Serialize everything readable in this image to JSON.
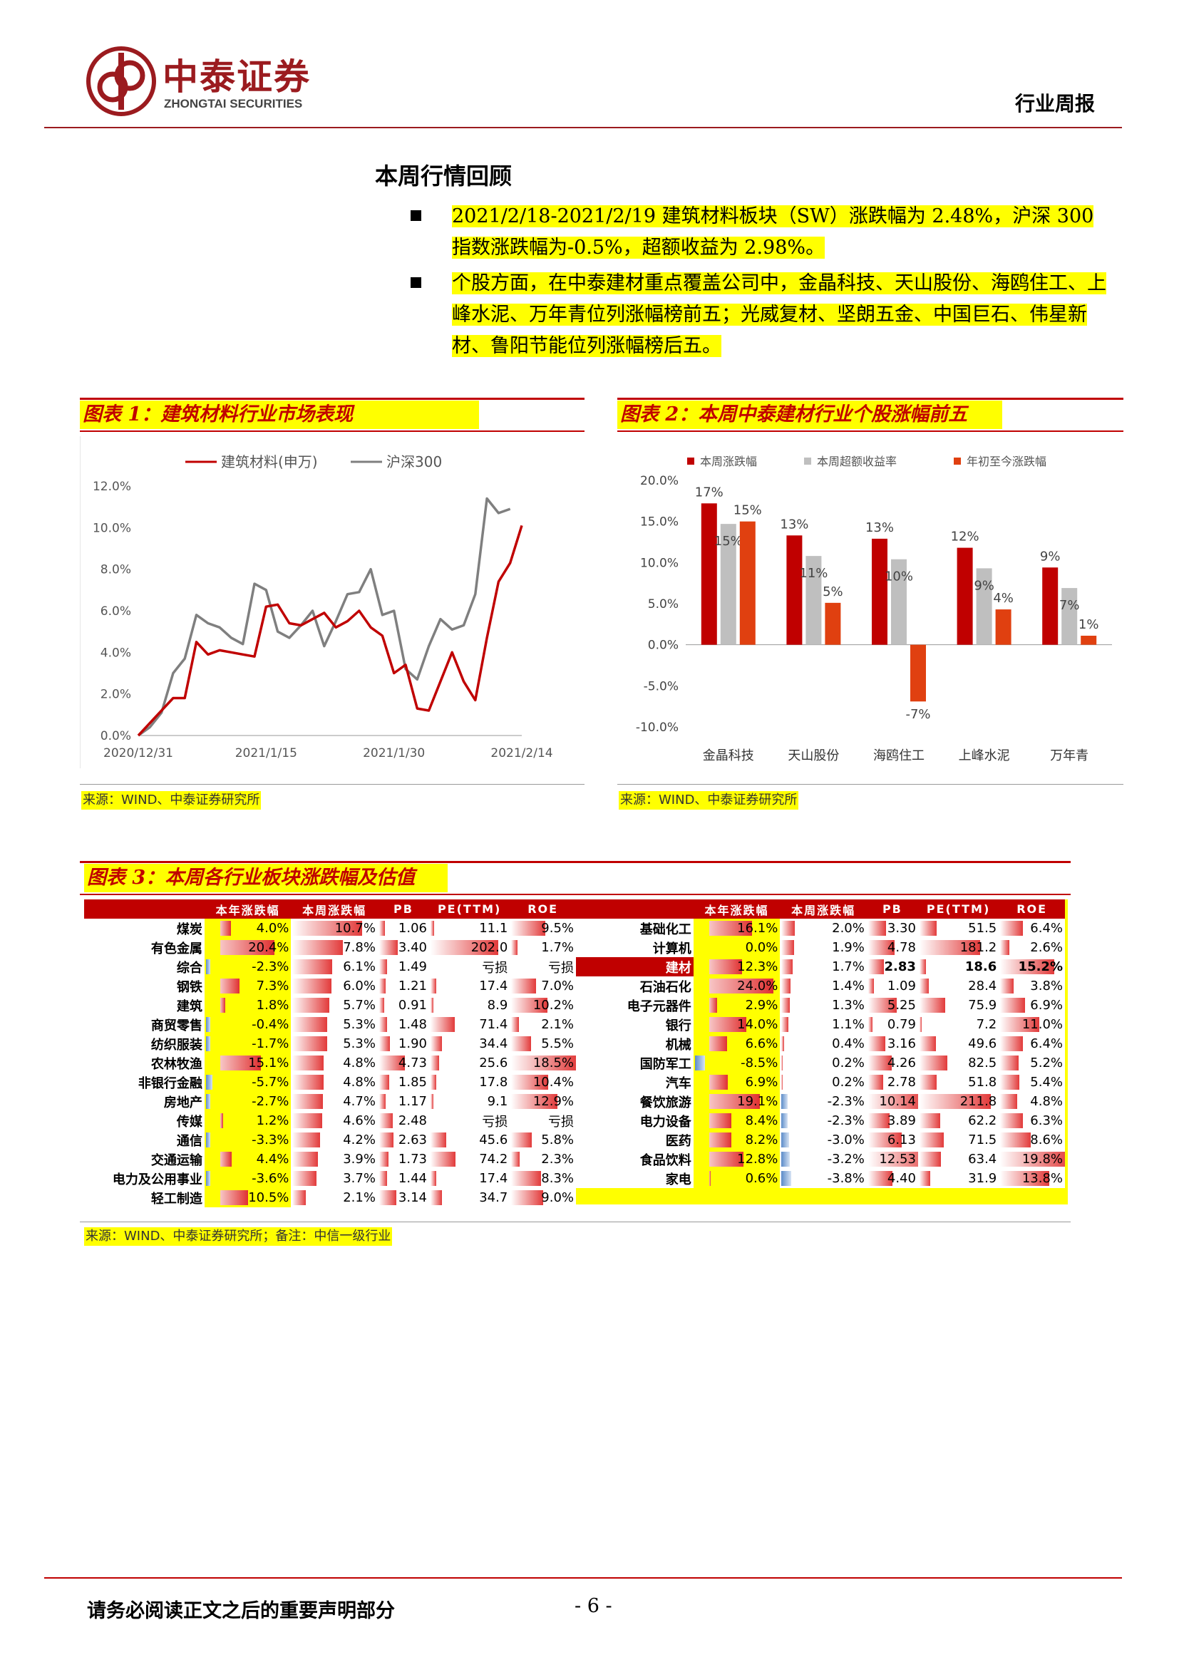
{
  "header": {
    "logo_cn": "中泰证券",
    "logo_en": "ZHONGTAI SECURITIES",
    "report_type": "行业周报"
  },
  "section": {
    "title": "本周行情回顾",
    "bullets": [
      "2021/2/18-2021/2/19 建筑材料板块（SW）涨跌幅为 2.48%，沪深 300 指数涨跌幅为-0.5%，超额收益为 2.98%。",
      "个股方面，在中泰建材重点覆盖公司中，金晶科技、天山股份、海鸥住工、上峰水泥、万年青位列涨幅榜前五；光威复材、坚朗五金、中国巨石、伟星新材、鲁阳节能位列涨幅榜后五。"
    ]
  },
  "figure1": {
    "title": "图表 1：建筑材料行业市场表现",
    "source": "来源：WIND、中泰证券研究所"
  },
  "figure2": {
    "title": "图表 2：本周中泰建材行业个股涨幅前五",
    "source": "来源：WIND、中泰证券研究所"
  },
  "figure3": {
    "title": "图表 3：本周各行业板块涨跌幅及估值",
    "source": "来源：WIND、中泰证券研究所；备注：中信一级行业"
  },
  "chart_data": [
    {
      "type": "line",
      "title": "",
      "x_ticks": [
        "2020/12/31",
        "2021/1/15",
        "2021/1/30",
        "2021/2/14"
      ],
      "ylim": [
        0,
        12
      ],
      "y_ticks": [
        "0.0%",
        "2.0%",
        "4.0%",
        "6.0%",
        "8.0%",
        "10.0%",
        "12.0%"
      ],
      "grid": false,
      "legend": "top",
      "series": [
        {
          "name": "建筑材料(申万)",
          "color": "#c00000",
          "points": [
            [
              0,
              0
            ],
            [
              1,
              0.6
            ],
            [
              2,
              1.2
            ],
            [
              3,
              1.8
            ],
            [
              4,
              1.8
            ],
            [
              5,
              4.5
            ],
            [
              6,
              3.9
            ],
            [
              7,
              4.1
            ],
            [
              8,
              4.0
            ],
            [
              9,
              3.9
            ],
            [
              10,
              3.8
            ],
            [
              11,
              6.2
            ],
            [
              12,
              6.3
            ],
            [
              13,
              5.4
            ],
            [
              14,
              5.3
            ],
            [
              15,
              5.6
            ],
            [
              16,
              5.9
            ],
            [
              17,
              5.2
            ],
            [
              18,
              5.5
            ],
            [
              19,
              6.0
            ],
            [
              20,
              5.2
            ],
            [
              21,
              4.8
            ],
            [
              22,
              3.0
            ],
            [
              23,
              3.4
            ],
            [
              24,
              1.3
            ],
            [
              25,
              1.2
            ],
            [
              26,
              2.6
            ],
            [
              27,
              4.0
            ],
            [
              28,
              2.6
            ],
            [
              29,
              1.7
            ],
            [
              30,
              4.7
            ],
            [
              31,
              7.4
            ],
            [
              32,
              8.3
            ],
            [
              33,
              10.1
            ]
          ]
        },
        {
          "name": "沪深300",
          "color": "#7f7f7f",
          "points": [
            [
              0,
              0
            ],
            [
              1,
              0.4
            ],
            [
              2,
              1.1
            ],
            [
              3,
              3.0
            ],
            [
              4,
              3.7
            ],
            [
              5,
              5.8
            ],
            [
              6,
              5.4
            ],
            [
              7,
              5.2
            ],
            [
              8,
              4.7
            ],
            [
              9,
              4.4
            ],
            [
              10,
              7.3
            ],
            [
              11,
              7.0
            ],
            [
              12,
              5.0
            ],
            [
              13,
              4.7
            ],
            [
              14,
              5.3
            ],
            [
              15,
              6.0
            ],
            [
              16,
              4.3
            ],
            [
              17,
              5.5
            ],
            [
              18,
              6.8
            ],
            [
              19,
              6.9
            ],
            [
              20,
              8.0
            ],
            [
              21,
              5.8
            ],
            [
              22,
              6.0
            ],
            [
              23,
              3.2
            ],
            [
              24,
              2.7
            ],
            [
              25,
              4.3
            ],
            [
              26,
              5.6
            ],
            [
              27,
              5.1
            ],
            [
              28,
              5.3
            ],
            [
              29,
              6.8
            ],
            [
              30,
              11.4
            ],
            [
              31,
              10.7
            ],
            [
              32,
              10.9
            ]
          ]
        }
      ]
    },
    {
      "type": "bar",
      "title": "",
      "categories": [
        "金晶科技",
        "天山股份",
        "海鸥住工",
        "上峰水泥",
        "万年青"
      ],
      "ylim": [
        -10,
        20
      ],
      "y_ticks": [
        "20.0%",
        "15.0%",
        "10.0%",
        "5.0%",
        "0.0%",
        "-5.0%",
        "-10.0%"
      ],
      "legend": "top",
      "series": [
        {
          "name": "本周涨跌幅",
          "color": "#c00000",
          "values": [
            17.2,
            13.3,
            12.9,
            11.8,
            9.4
          ],
          "labels": [
            "17%",
            "13%",
            "13%",
            "12%",
            "9%"
          ]
        },
        {
          "name": "本周超额收益率",
          "color": "#bfbfbf",
          "values": [
            14.7,
            10.8,
            10.4,
            9.3,
            6.9
          ],
          "labels": [
            "15%",
            "11%",
            "10%",
            "9%",
            "7%"
          ]
        },
        {
          "name": "年初至今涨跌幅",
          "color": "#e04010",
          "values": [
            15.0,
            5.1,
            -6.9,
            4.3,
            1.1
          ],
          "labels": [
            "15%",
            "5%",
            "-7%",
            "4%",
            "1%"
          ]
        }
      ]
    },
    {
      "type": "table",
      "title": "",
      "columns": [
        "本年涨跌幅",
        "本周涨跌幅",
        "PB",
        "PE(TTM)",
        "ROE"
      ],
      "left_rows": [
        {
          "name": "煤炭",
          "ytd": "4.0%",
          "ytd_v": 4.0,
          "week": "10.7%",
          "week_v": 10.7,
          "pb": "1.06",
          "pb_v": 1.06,
          "pe": "11.1",
          "pe_v": 11.1,
          "roe": "9.5%",
          "roe_v": 9.5
        },
        {
          "name": "有色金属",
          "ytd": "20.4%",
          "ytd_v": 20.4,
          "week": "7.8%",
          "week_v": 7.8,
          "pb": "3.40",
          "pb_v": 3.4,
          "pe": "202.0",
          "pe_v": 202.0,
          "roe": "1.7%",
          "roe_v": 1.7
        },
        {
          "name": "综合",
          "ytd": "-2.3%",
          "ytd_v": -2.3,
          "week": "6.1%",
          "week_v": 6.1,
          "pb": "1.49",
          "pb_v": 1.49,
          "pe": "亏损",
          "pe_v": 0,
          "roe": "亏损",
          "roe_v": 0
        },
        {
          "name": "钢铁",
          "ytd": "7.3%",
          "ytd_v": 7.3,
          "week": "6.0%",
          "week_v": 6.0,
          "pb": "1.21",
          "pb_v": 1.21,
          "pe": "17.4",
          "pe_v": 17.4,
          "roe": "7.0%",
          "roe_v": 7.0
        },
        {
          "name": "建筑",
          "ytd": "1.8%",
          "ytd_v": 1.8,
          "week": "5.7%",
          "week_v": 5.7,
          "pb": "0.91",
          "pb_v": 0.91,
          "pe": "8.9",
          "pe_v": 8.9,
          "roe": "10.2%",
          "roe_v": 10.2
        },
        {
          "name": "商贸零售",
          "ytd": "-0.4%",
          "ytd_v": -0.4,
          "week": "5.3%",
          "week_v": 5.3,
          "pb": "1.48",
          "pb_v": 1.48,
          "pe": "71.4",
          "pe_v": 71.4,
          "roe": "2.1%",
          "roe_v": 2.1
        },
        {
          "name": "纺织服装",
          "ytd": "-1.7%",
          "ytd_v": -1.7,
          "week": "5.3%",
          "week_v": 5.3,
          "pb": "1.90",
          "pb_v": 1.9,
          "pe": "34.4",
          "pe_v": 34.4,
          "roe": "5.5%",
          "roe_v": 5.5
        },
        {
          "name": "农林牧渔",
          "ytd": "15.1%",
          "ytd_v": 15.1,
          "week": "4.8%",
          "week_v": 4.8,
          "pb": "4.73",
          "pb_v": 4.73,
          "pe": "25.6",
          "pe_v": 25.6,
          "roe": "18.5%",
          "roe_v": 18.5
        },
        {
          "name": "非银行金融",
          "ytd": "-5.7%",
          "ytd_v": -5.7,
          "week": "4.8%",
          "week_v": 4.8,
          "pb": "1.85",
          "pb_v": 1.85,
          "pe": "17.8",
          "pe_v": 17.8,
          "roe": "10.4%",
          "roe_v": 10.4
        },
        {
          "name": "房地产",
          "ytd": "-2.7%",
          "ytd_v": -2.7,
          "week": "4.7%",
          "week_v": 4.7,
          "pb": "1.17",
          "pb_v": 1.17,
          "pe": "9.1",
          "pe_v": 9.1,
          "roe": "12.9%",
          "roe_v": 12.9
        },
        {
          "name": "传媒",
          "ytd": "1.2%",
          "ytd_v": 1.2,
          "week": "4.6%",
          "week_v": 4.6,
          "pb": "2.48",
          "pb_v": 2.48,
          "pe": "亏损",
          "pe_v": 0,
          "roe": "亏损",
          "roe_v": 0
        },
        {
          "name": "通信",
          "ytd": "-3.3%",
          "ytd_v": -3.3,
          "week": "4.2%",
          "week_v": 4.2,
          "pb": "2.63",
          "pb_v": 2.63,
          "pe": "45.6",
          "pe_v": 45.6,
          "roe": "5.8%",
          "roe_v": 5.8
        },
        {
          "name": "交通运输",
          "ytd": "4.4%",
          "ytd_v": 4.4,
          "week": "3.9%",
          "week_v": 3.9,
          "pb": "1.73",
          "pb_v": 1.73,
          "pe": "74.2",
          "pe_v": 74.2,
          "roe": "2.3%",
          "roe_v": 2.3
        },
        {
          "name": "电力及公用事业",
          "ytd": "-3.6%",
          "ytd_v": -3.6,
          "week": "3.7%",
          "week_v": 3.7,
          "pb": "1.44",
          "pb_v": 1.44,
          "pe": "17.4",
          "pe_v": 17.4,
          "roe": "8.3%",
          "roe_v": 8.3
        },
        {
          "name": "轻工制造",
          "ytd": "10.5%",
          "ytd_v": 10.5,
          "week": "2.1%",
          "week_v": 2.1,
          "pb": "3.14",
          "pb_v": 3.14,
          "pe": "34.7",
          "pe_v": 34.7,
          "roe": "9.0%",
          "roe_v": 9.0
        }
      ],
      "right_rows": [
        {
          "name": "基础化工",
          "ytd": "16.1%",
          "ytd_v": 16.1,
          "week": "2.0%",
          "week_v": 2.0,
          "pb": "3.30",
          "pb_v": 3.3,
          "pe": "51.5",
          "pe_v": 51.5,
          "roe": "6.4%",
          "roe_v": 6.4
        },
        {
          "name": "计算机",
          "ytd": "0.0%",
          "ytd_v": 0.0,
          "week": "1.9%",
          "week_v": 1.9,
          "pb": "4.78",
          "pb_v": 4.78,
          "pe": "181.2",
          "pe_v": 181.2,
          "roe": "2.6%",
          "roe_v": 2.6
        },
        {
          "name": "建材",
          "ytd": "12.3%",
          "ytd_v": 12.3,
          "week": "1.7%",
          "week_v": 1.7,
          "pb": "2.83",
          "pb_v": 2.83,
          "pe": "18.6",
          "pe_v": 18.6,
          "roe": "15.2%",
          "roe_v": 15.2,
          "highlight": true
        },
        {
          "name": "石油石化",
          "ytd": "24.0%",
          "ytd_v": 24.0,
          "week": "1.4%",
          "week_v": 1.4,
          "pb": "1.09",
          "pb_v": 1.09,
          "pe": "28.4",
          "pe_v": 28.4,
          "roe": "3.8%",
          "roe_v": 3.8
        },
        {
          "name": "电子元器件",
          "ytd": "2.9%",
          "ytd_v": 2.9,
          "week": "1.3%",
          "week_v": 1.3,
          "pb": "5.25",
          "pb_v": 5.25,
          "pe": "75.9",
          "pe_v": 75.9,
          "roe": "6.9%",
          "roe_v": 6.9
        },
        {
          "name": "银行",
          "ytd": "14.0%",
          "ytd_v": 14.0,
          "week": "1.1%",
          "week_v": 1.1,
          "pb": "0.79",
          "pb_v": 0.79,
          "pe": "7.2",
          "pe_v": 7.2,
          "roe": "11.0%",
          "roe_v": 11.0
        },
        {
          "name": "机械",
          "ytd": "6.6%",
          "ytd_v": 6.6,
          "week": "0.4%",
          "week_v": 0.4,
          "pb": "3.16",
          "pb_v": 3.16,
          "pe": "49.6",
          "pe_v": 49.6,
          "roe": "6.4%",
          "roe_v": 6.4
        },
        {
          "name": "国防军工",
          "ytd": "-8.5%",
          "ytd_v": -8.5,
          "week": "0.2%",
          "week_v": 0.2,
          "pb": "4.26",
          "pb_v": 4.26,
          "pe": "82.5",
          "pe_v": 82.5,
          "roe": "5.2%",
          "roe_v": 5.2
        },
        {
          "name": "汽车",
          "ytd": "6.9%",
          "ytd_v": 6.9,
          "week": "0.2%",
          "week_v": 0.2,
          "pb": "2.78",
          "pb_v": 2.78,
          "pe": "51.8",
          "pe_v": 51.8,
          "roe": "5.4%",
          "roe_v": 5.4
        },
        {
          "name": "餐饮旅游",
          "ytd": "19.1%",
          "ytd_v": 19.1,
          "week": "-2.3%",
          "week_v": -2.3,
          "pb": "10.14",
          "pb_v": 10.14,
          "pe": "211.8",
          "pe_v": 211.8,
          "roe": "4.8%",
          "roe_v": 4.8
        },
        {
          "name": "电力设备",
          "ytd": "8.4%",
          "ytd_v": 8.4,
          "week": "-2.3%",
          "week_v": -2.3,
          "pb": "3.89",
          "pb_v": 3.89,
          "pe": "62.2",
          "pe_v": 62.2,
          "roe": "6.3%",
          "roe_v": 6.3
        },
        {
          "name": "医药",
          "ytd": "8.2%",
          "ytd_v": 8.2,
          "week": "-3.0%",
          "week_v": -3.0,
          "pb": "6.13",
          "pb_v": 6.13,
          "pe": "71.5",
          "pe_v": 71.5,
          "roe": "8.6%",
          "roe_v": 8.6
        },
        {
          "name": "食品饮料",
          "ytd": "12.8%",
          "ytd_v": 12.8,
          "week": "-3.2%",
          "week_v": -3.2,
          "pb": "12.53",
          "pb_v": 12.53,
          "pe": "63.4",
          "pe_v": 63.4,
          "roe": "19.8%",
          "roe_v": 19.8
        },
        {
          "name": "家电",
          "ytd": "0.6%",
          "ytd_v": 0.6,
          "week": "-3.8%",
          "week_v": -3.8,
          "pb": "4.40",
          "pb_v": 4.4,
          "pe": "31.9",
          "pe_v": 31.9,
          "roe": "13.8%",
          "roe_v": 13.8
        }
      ]
    }
  ],
  "footer": {
    "note": "请务必阅读正文之后的重要声明部分",
    "page": "- 6 -"
  },
  "colors": {
    "brand_red": "#9b1b1f",
    "accent_red": "#c00000",
    "highlight_yellow": "#ffff00"
  }
}
